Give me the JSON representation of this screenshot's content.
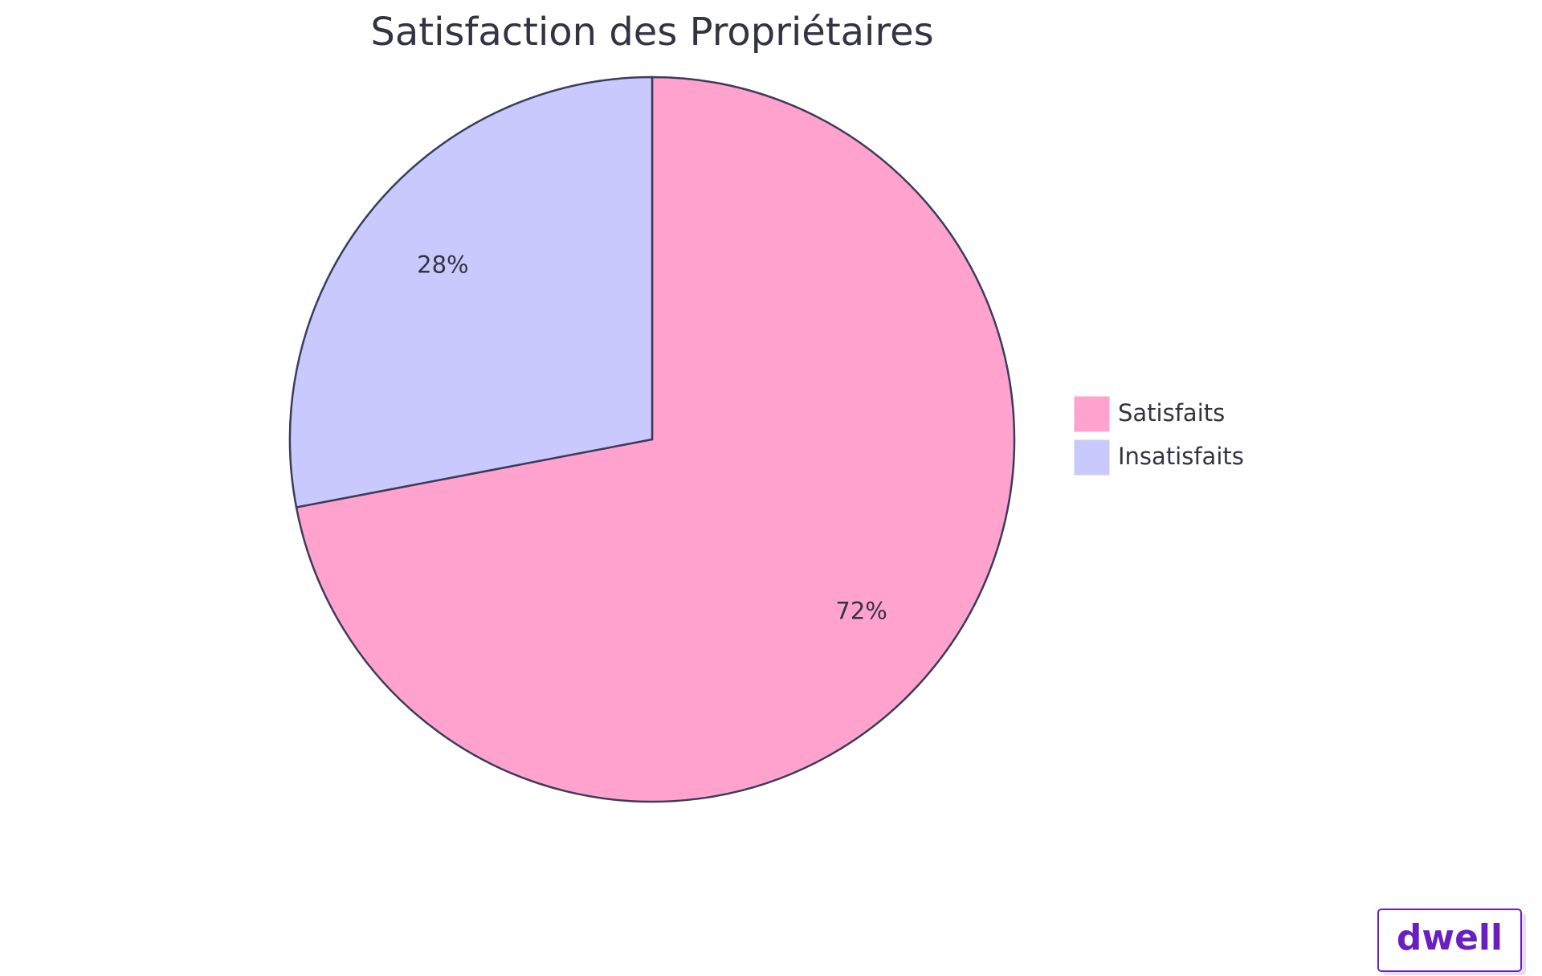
{
  "chart_data": {
    "type": "pie",
    "title": "Satisfaction des Propriétaires",
    "categories": [
      "Satisfaits",
      "Insatisfaits"
    ],
    "values": [
      72,
      28
    ],
    "value_labels": [
      "72%",
      "28%"
    ],
    "colors": [
      "#ffa3ce",
      "#c9c9fd"
    ],
    "legend": "right"
  },
  "logo": "dwell"
}
